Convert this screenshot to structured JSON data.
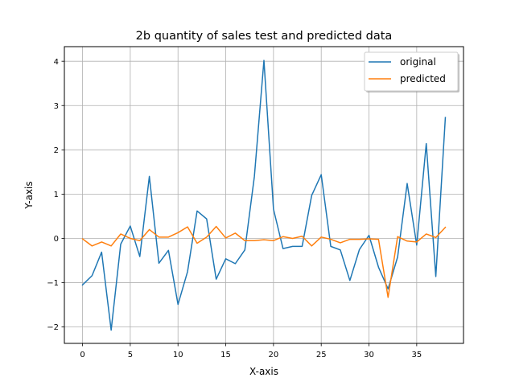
{
  "chart_data": {
    "type": "line",
    "title": "2b quantity of sales test and predicted data",
    "xlabel": "X-axis",
    "ylabel": "Y-axis",
    "xlim": [
      -1.9,
      39.9
    ],
    "ylim": [
      -2.37,
      4.33
    ],
    "xticks": [
      0,
      5,
      10,
      15,
      20,
      25,
      30,
      35
    ],
    "yticks": [
      -2,
      -1,
      0,
      1,
      2,
      3,
      4
    ],
    "xtick_labels": [
      "0",
      "5",
      "10",
      "15",
      "20",
      "25",
      "30",
      "35"
    ],
    "ytick_labels": [
      "−2",
      "−1",
      "0",
      "1",
      "2",
      "3",
      "4"
    ],
    "grid": true,
    "legend_position": "top-right",
    "x": [
      0,
      1,
      2,
      3,
      4,
      5,
      6,
      7,
      8,
      9,
      10,
      11,
      12,
      13,
      14,
      15,
      16,
      17,
      18,
      19,
      20,
      21,
      22,
      23,
      24,
      25,
      26,
      27,
      28,
      29,
      30,
      31,
      32,
      33,
      34,
      35,
      36,
      37,
      38
    ],
    "series": [
      {
        "name": "original",
        "color": "#1f77b4",
        "values": [
          -1.05,
          -0.84,
          -0.31,
          -2.07,
          -0.13,
          0.28,
          -0.41,
          1.4,
          -0.56,
          -0.27,
          -1.49,
          -0.75,
          0.62,
          0.44,
          -0.92,
          -0.46,
          -0.57,
          -0.26,
          1.4,
          4.02,
          0.66,
          -0.23,
          -0.18,
          -0.18,
          0.97,
          1.44,
          -0.18,
          -0.26,
          -0.95,
          -0.25,
          0.07,
          -0.65,
          -1.14,
          -0.42,
          1.24,
          -0.15,
          2.14,
          -0.86,
          2.73
        ]
      },
      {
        "name": "predicted",
        "color": "#ff7f0e",
        "values": [
          -0.01,
          -0.17,
          -0.08,
          -0.17,
          0.1,
          0.0,
          -0.05,
          0.2,
          0.03,
          0.03,
          0.13,
          0.26,
          -0.11,
          0.03,
          0.27,
          0.01,
          0.12,
          -0.05,
          -0.05,
          -0.03,
          -0.05,
          0.04,
          0.0,
          0.05,
          -0.17,
          0.03,
          -0.02,
          -0.1,
          -0.02,
          -0.02,
          -0.01,
          -0.02,
          -1.33,
          0.04,
          -0.06,
          -0.08,
          0.1,
          0.02,
          0.25
        ]
      }
    ]
  }
}
